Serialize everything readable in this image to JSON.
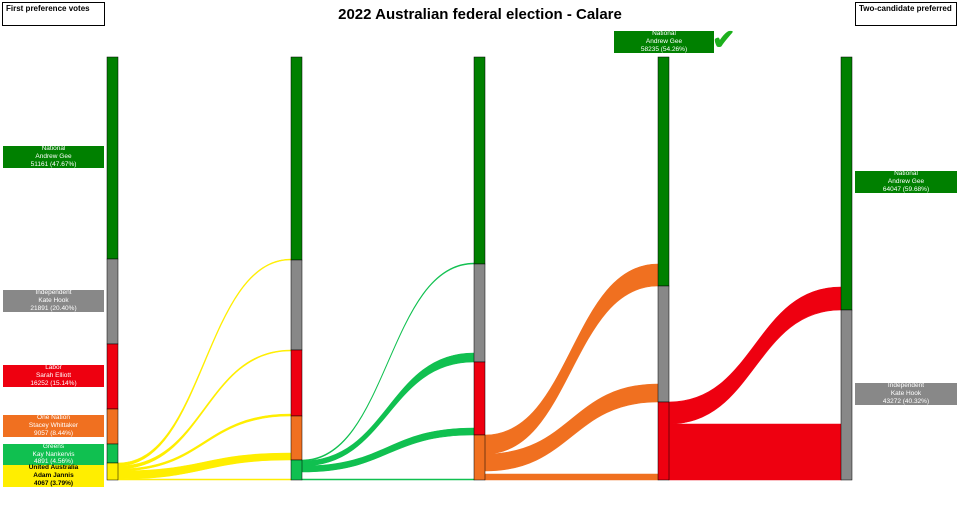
{
  "title": "2022 Australian federal election - Calare",
  "corner_left": "First preference votes",
  "corner_right": "Two-candidate preferred",
  "colors": {
    "National": "#008000",
    "Independent": "#888888",
    "Labor": "#ee0010",
    "One Nation": "#f07020",
    "Greens": "#10c050",
    "United Australia": "#ffee00"
  },
  "first_preferences": [
    {
      "party": "National",
      "candidate": "Andrew Gee",
      "votes": "51161 (47.67%)",
      "color": "#008000"
    },
    {
      "party": "Independent",
      "candidate": "Kate Hook",
      "votes": "21891 (20.40%)",
      "color": "#888888"
    },
    {
      "party": "Labor",
      "candidate": "Sarah Elliott",
      "votes": "16252 (15.14%)",
      "color": "#ee0010"
    },
    {
      "party": "One Nation",
      "candidate": "Stacey Whittaker",
      "votes": "9057 (8.44%)",
      "color": "#f07020"
    },
    {
      "party": "Greens",
      "candidate": "Kay Nankervis",
      "votes": "4891 (4.56%)",
      "color": "#10c050"
    },
    {
      "party": "United Australia",
      "candidate": "Adam Jannis",
      "votes": "4067 (3.79%)",
      "color": "#ffee00"
    }
  ],
  "round4_winner_label": {
    "party": "National",
    "candidate": "Andrew Gee",
    "votes": "58235 (54.26%)"
  },
  "two_candidate_preferred": [
    {
      "party": "National",
      "candidate": "Andrew Gee",
      "votes": "64047 (59.68%)",
      "color": "#008000"
    },
    {
      "party": "Independent",
      "candidate": "Kate Hook",
      "votes": "43272 (40.32%)",
      "color": "#888888"
    }
  ],
  "check_icon": "checkmark-icon"
}
